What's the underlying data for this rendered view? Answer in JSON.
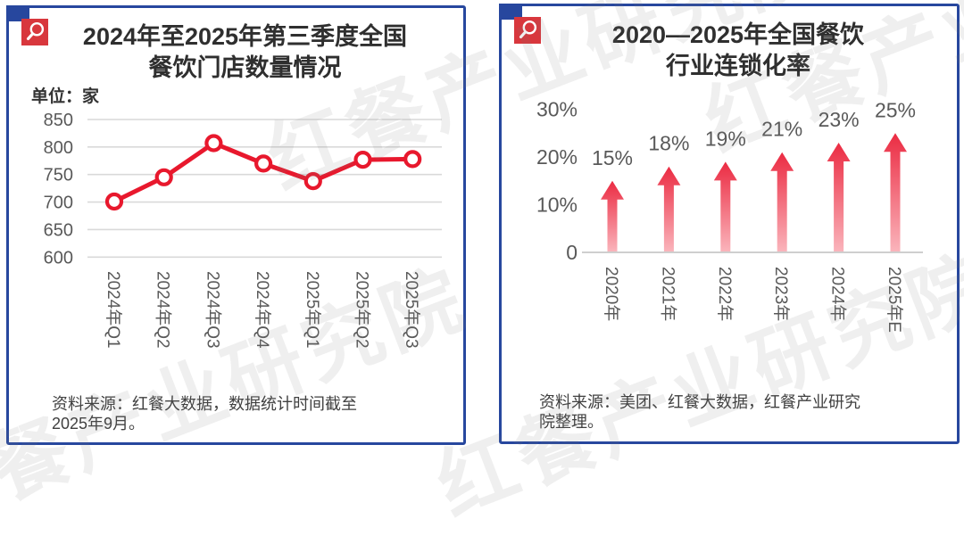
{
  "watermark": {
    "text": "红餐产业研究院"
  },
  "left_card": {
    "title": [
      "2024年至2025年第三季度全国",
      "餐饮门店数量情况"
    ],
    "unit_label": "单位：家",
    "source": [
      "资料来源：红餐大数据，数据统计时间截至",
      "2025年9月。"
    ]
  },
  "right_card": {
    "title": [
      "2020—2025年全国餐饮",
      "行业连锁化率"
    ],
    "source": [
      "资料来源：美团、红餐大数据，红餐产业研究",
      "院整理。"
    ]
  },
  "icons": {
    "badge": "magnifier-icon",
    "corner": "corner-square"
  },
  "colors": {
    "border_blue": "#27479E",
    "badge_red": "#D8373D",
    "line_red": "#E8182D",
    "arrow_top": "#EB2B42",
    "arrow_bottom": "#FAB4BB",
    "axis_gray": "#595959",
    "gridline_gray": "#D9D9D9",
    "baseline_gray": "#CFCFCF"
  },
  "chart_data": [
    {
      "type": "line",
      "title": "2024年至2025年第三季度全国餐饮门店数量情况",
      "unit": "家",
      "categories": [
        "2024年Q1",
        "2024年Q2",
        "2024年Q3",
        "2024年Q4",
        "2025年Q1",
        "2025年Q2",
        "2025年Q3"
      ],
      "values": [
        701,
        745,
        807,
        770,
        738,
        777,
        778
      ],
      "ylim": [
        600,
        850
      ],
      "yticks": [
        850,
        800,
        750,
        700,
        650,
        600
      ],
      "grid": true,
      "legend": "none",
      "marker": "open-circle"
    },
    {
      "type": "bar",
      "subtype": "arrow-bar",
      "title": "2020—2025年全国餐饮行业连锁化率",
      "categories": [
        "2020年",
        "2021年",
        "2022年",
        "2023年",
        "2024年",
        "2025年E"
      ],
      "values": [
        15,
        18,
        19,
        21,
        23,
        25
      ],
      "labels": [
        "15%",
        "18%",
        "19%",
        "21%",
        "23%",
        "25%"
      ],
      "ylim": [
        0,
        30
      ],
      "ytick_labels": [
        "30%",
        "20%",
        "10%",
        "0"
      ],
      "ytick_values": [
        30,
        20,
        10,
        0
      ],
      "grid": false,
      "legend": "none"
    }
  ]
}
